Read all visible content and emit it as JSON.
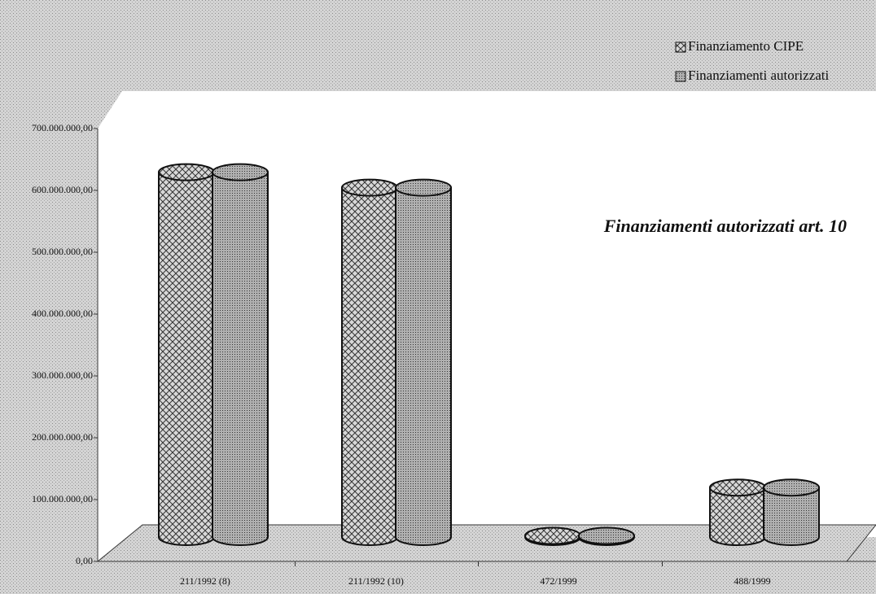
{
  "chart_data": {
    "type": "cylinder",
    "title": "Finanziamenti autorizzati art. 10",
    "categories": [
      "211/1992 (8)",
      "211/1992 (10)",
      "472/1999",
      "488/1999"
    ],
    "series": [
      {
        "name": "Finanziamento CIPE",
        "color": "#9a9a9a",
        "pattern": "crosshatch",
        "values": [
          590000000,
          565000000,
          2000000,
          80000000
        ]
      },
      {
        "name": "Finanziamenti autorizzati",
        "color": "#9a9a9a",
        "pattern": "dots",
        "values": [
          590000000,
          565000000,
          2000000,
          80000000
        ]
      }
    ],
    "ylim": [
      0,
      700000000
    ],
    "yticks": [
      {
        "value": 0,
        "label": "0,00"
      },
      {
        "value": 100000000,
        "label": "100.000.000,00"
      },
      {
        "value": 200000000,
        "label": "200.000.000,00"
      },
      {
        "value": 300000000,
        "label": "300.000.000,00"
      },
      {
        "value": 400000000,
        "label": "400.000.000,00"
      },
      {
        "value": 500000000,
        "label": "500.000.000,00"
      },
      {
        "value": 600000000,
        "label": "600.000.000,00"
      },
      {
        "value": 700000000,
        "label": "700.000.000,00"
      }
    ],
    "legend": "top-right"
  }
}
